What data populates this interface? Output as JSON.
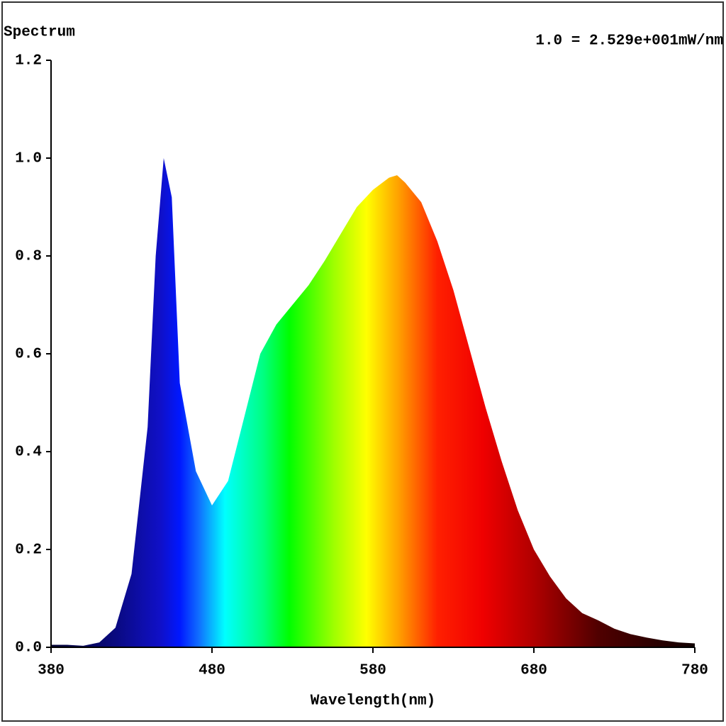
{
  "chart_data": {
    "type": "area",
    "title": "Spectrum",
    "annotation": "1.0 = 2.529e+001mW/nm",
    "x_label": "Wavelength(nm)",
    "x": [
      380,
      390,
      400,
      410,
      420,
      430,
      440,
      445,
      450,
      455,
      460,
      470,
      480,
      490,
      500,
      510,
      520,
      530,
      540,
      550,
      560,
      570,
      580,
      590,
      595,
      600,
      610,
      620,
      630,
      640,
      650,
      660,
      670,
      680,
      690,
      700,
      710,
      720,
      730,
      740,
      750,
      760,
      770,
      780
    ],
    "values": [
      0.005,
      0.005,
      0.003,
      0.01,
      0.04,
      0.15,
      0.45,
      0.8,
      1.0,
      0.92,
      0.54,
      0.36,
      0.29,
      0.34,
      0.47,
      0.6,
      0.66,
      0.7,
      0.74,
      0.79,
      0.845,
      0.9,
      0.935,
      0.96,
      0.965,
      0.95,
      0.91,
      0.83,
      0.73,
      0.61,
      0.49,
      0.38,
      0.28,
      0.2,
      0.145,
      0.1,
      0.07,
      0.055,
      0.038,
      0.027,
      0.02,
      0.014,
      0.01,
      0.008
    ],
    "xlim": [
      380,
      780
    ],
    "xticks": [
      380,
      480,
      580,
      680,
      780
    ],
    "ylim": [
      0,
      1.2
    ],
    "yticks": [
      {
        "value": 0,
        "label": "0.0"
      },
      0.2,
      0.4,
      0.6,
      0.8,
      {
        "value": 1,
        "label": "1.0"
      },
      1.2
    ],
    "grid": false
  }
}
